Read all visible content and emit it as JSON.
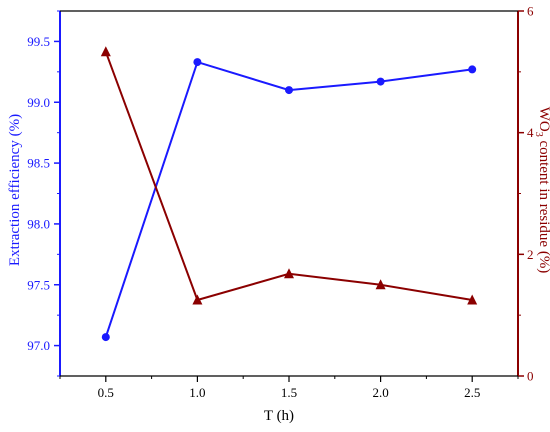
{
  "chart_data": {
    "type": "line",
    "xlabel": "T (h)",
    "x": [
      0.5,
      1.0,
      1.5,
      2.0,
      2.5
    ],
    "x_ticks": [
      "0.5",
      "1.0",
      "1.5",
      "2.0",
      "2.5"
    ],
    "xlim": [
      0.25,
      2.75
    ],
    "y_left": {
      "label": "Extraction efficiency (%)",
      "color": "#1a1aff",
      "lim": [
        96.75,
        99.75
      ],
      "ticks": [
        "97.0",
        "97.5",
        "98.0",
        "98.5",
        "99.0",
        "99.5"
      ]
    },
    "y_right": {
      "label_prefix": "WO",
      "label_sub": "3",
      "label_suffix": " content in residue (%)",
      "color": "#8b0000",
      "lim": [
        0,
        6
      ],
      "ticks": [
        "0",
        "2",
        "4",
        "6"
      ]
    },
    "series": [
      {
        "axis": "left",
        "marker": "circle",
        "color": "#1a1aff",
        "values": [
          97.07,
          99.33,
          99.1,
          99.17,
          99.27
        ]
      },
      {
        "axis": "right",
        "marker": "triangle",
        "color": "#8b0000",
        "values": [
          5.33,
          1.25,
          1.68,
          1.5,
          1.25
        ]
      }
    ]
  }
}
